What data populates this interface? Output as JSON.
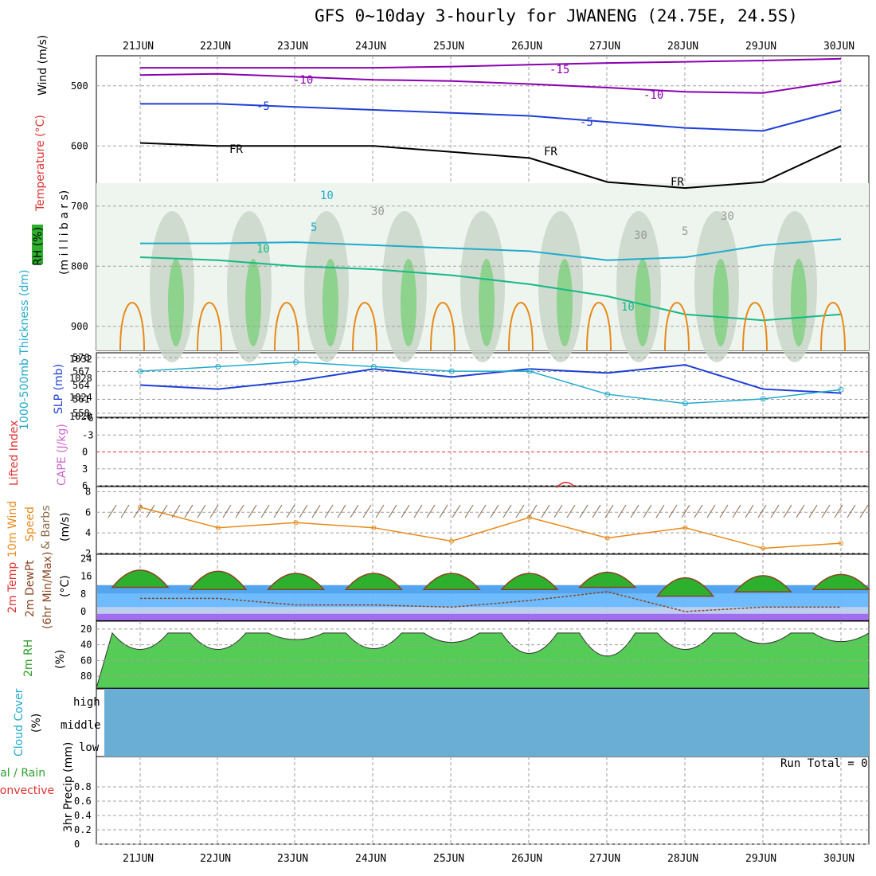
{
  "title": "GFS 0~10day 3-hourly for JWANENG (24.75E, 24.5S)",
  "dates": [
    "21JUN",
    "22JUN",
    "23JUN",
    "24JUN",
    "25JUN",
    "26JUN",
    "27JUN",
    "28JUN",
    "29JUN",
    "30JUN"
  ],
  "colors": {
    "grid": "#a0a0a0",
    "green_rh": "#2e9f2e",
    "purple": "#8b00b0",
    "blue": "#1f3fd6",
    "cyan": "#22aacc",
    "orange": "#e88a1a",
    "red": "#e03030",
    "cloud": "#6aaed6",
    "wind_barb": "#8b6a4a",
    "temp_purple": "#9b66ee"
  },
  "panels": {
    "upper": {
      "ylabel_rh": "RH (%)",
      "ylabel_temp": "Temperature (°C)",
      "ylabel_wind": "Wind (m/s)",
      "ylabel_pressure": "(m i l l i b a r s)",
      "ticks": [
        "500",
        "600",
        "700",
        "800",
        "900"
      ],
      "contours": [
        "-15",
        "-10",
        "-10",
        "-5",
        "-5",
        "FR",
        "FR",
        "FR",
        "5",
        "10",
        "10",
        "10",
        "30",
        "30",
        "30",
        "5"
      ]
    },
    "slp": {
      "ylabel_thick": "1000-500mb Thickness (dm)",
      "ylabel_slp": "SLP (mb)",
      "left_ticks": [
        "570",
        "567",
        "564",
        "561",
        "558"
      ],
      "right_ticks": [
        "1032",
        "1028",
        "1024",
        "1020"
      ]
    },
    "cape": {
      "ylabel_li": "Lifted Index",
      "ylabel_cape": "CAPE (J/kg)",
      "ticks": [
        "-6",
        "-3",
        "0",
        "3",
        "6"
      ]
    },
    "wind10": {
      "ylabel_a": "10m Wind",
      "ylabel_b": "Speed",
      "ylabel_c": "& Barbs",
      "ylabel_unit": "(m/s)",
      "ticks": [
        "8",
        "6",
        "4",
        "2"
      ]
    },
    "temp2m": {
      "ylabel_a": "2m Temp",
      "ylabel_b": "2m DewPt",
      "ylabel_c": "(6hr Min/Max)",
      "ylabel_unit": "(°C)",
      "ticks": [
        "24",
        "16",
        "8",
        "0"
      ]
    },
    "rh2m": {
      "ylabel": "2m RH",
      "ylabel_unit": "(%)",
      "ticks": [
        "80",
        "60",
        "40",
        "20"
      ]
    },
    "cloud": {
      "ylabel": "Cloud Cover",
      "ylabel_unit": "(%)",
      "levels": [
        "high",
        "middle",
        "low"
      ]
    },
    "precip": {
      "ylabel_a": "Total / Rain",
      "ylabel_b": "Convective",
      "ylabel_c": "3hr Precip (mm)",
      "ticks": [
        "0.8",
        "0.6",
        "0.4",
        "0.2",
        "0"
      ],
      "run_total": "Run Total = 0"
    }
  },
  "chart_data": [
    {
      "type": "line",
      "name": "upper-air cross-section",
      "ylabel": "millibars",
      "ylim": [
        450,
        940
      ],
      "x": [
        "21JUN",
        "22JUN",
        "23JUN",
        "24JUN",
        "25JUN",
        "26JUN",
        "27JUN",
        "28JUN",
        "29JUN",
        "30JUN"
      ],
      "series": [
        {
          "name": "-15",
          "values": [
            470,
            470,
            470,
            470,
            468,
            465,
            462,
            460,
            458,
            455
          ]
        },
        {
          "name": "-10",
          "values": [
            482,
            480,
            485,
            490,
            492,
            497,
            503,
            510,
            512,
            492
          ]
        },
        {
          "name": "-5",
          "values": [
            530,
            530,
            535,
            540,
            545,
            550,
            560,
            570,
            575,
            540
          ]
        },
        {
          "name": "FR",
          "values": [
            595,
            600,
            600,
            600,
            610,
            620,
            660,
            670,
            660,
            600
          ]
        },
        {
          "name": "5",
          "values": [
            762,
            762,
            760,
            765,
            770,
            775,
            790,
            785,
            765,
            755
          ]
        },
        {
          "name": "10",
          "values": [
            785,
            790,
            800,
            805,
            815,
            830,
            850,
            880,
            890,
            880
          ]
        }
      ]
    },
    {
      "type": "line",
      "name": "SLP / Thickness",
      "ylabel": "SLP (mb)",
      "ylim": [
        1018,
        1034
      ],
      "x": [
        "21JUN",
        "22JUN",
        "23JUN",
        "24JUN",
        "25JUN",
        "26JUN",
        "27JUN",
        "28JUN",
        "29JUN",
        "30JUN"
      ],
      "series": [
        {
          "name": "SLP (mb)",
          "values": [
            1026,
            1025,
            1027,
            1030,
            1028,
            1030,
            1029,
            1031,
            1025,
            1024
          ]
        },
        {
          "name": "1000-500mb Thickness (dm)",
          "values": [
            567,
            568,
            569,
            568,
            567,
            567,
            562,
            560,
            561,
            563
          ]
        }
      ]
    },
    {
      "type": "line",
      "name": "Lifted Index / CAPE",
      "ylabel": "Lifted Index",
      "ylim": [
        6,
        -6
      ],
      "x": [
        "26JUN"
      ],
      "series": [
        {
          "name": "Lifted Index",
          "values": [
            5.2
          ]
        }
      ]
    },
    {
      "type": "line",
      "name": "10m Wind Speed",
      "ylabel": "(m/s)",
      "ylim": [
        2,
        8.5
      ],
      "x": [
        "21JUN",
        "22JUN",
        "23JUN",
        "24JUN",
        "25JUN",
        "26JUN",
        "27JUN",
        "28JUN",
        "29JUN",
        "30JUN"
      ],
      "series": [
        {
          "name": "10m Wind Speed",
          "values": [
            6.5,
            4.5,
            5.0,
            4.5,
            3.2,
            5.5,
            3.5,
            4.5,
            2.5,
            3.0
          ]
        }
      ]
    },
    {
      "type": "area",
      "name": "2m Temp / DewPt",
      "ylabel": "(°C)",
      "ylim": [
        -4,
        26
      ],
      "x": [
        "21JUN",
        "22JUN",
        "23JUN",
        "24JUN",
        "25JUN",
        "26JUN",
        "27JUN",
        "28JUN",
        "29JUN",
        "30JUN"
      ],
      "series": [
        {
          "name": "2m Temp max",
          "values": [
            23,
            23,
            21,
            21,
            21,
            21,
            21,
            20,
            20,
            20
          ]
        },
        {
          "name": "2m Temp min",
          "values": [
            11,
            10,
            10,
            10,
            10,
            10,
            11,
            7,
            9,
            10
          ]
        },
        {
          "name": "2m DewPt",
          "values": [
            6,
            6,
            3,
            3,
            2,
            5,
            9,
            0,
            2,
            2
          ]
        }
      ]
    },
    {
      "type": "area",
      "name": "2m RH",
      "ylabel": "(%)",
      "ylim": [
        10,
        95
      ],
      "x": [
        "21JUN",
        "22JUN",
        "23JUN",
        "24JUN",
        "25JUN",
        "26JUN",
        "27JUN",
        "28JUN",
        "29JUN",
        "30JUN"
      ],
      "series": [
        {
          "name": "2m RH",
          "values": [
            75,
            75,
            50,
            73,
            57,
            85,
            92,
            75,
            60,
            55
          ]
        }
      ]
    },
    {
      "type": "bar",
      "name": "3hr Precip",
      "ylabel": "3hr Precip (mm)",
      "ylim": [
        0,
        1
      ],
      "x": [
        "21JUN",
        "22JUN",
        "23JUN",
        "24JUN",
        "25JUN",
        "26JUN",
        "27JUN",
        "28JUN",
        "29JUN",
        "30JUN"
      ],
      "series": [
        {
          "name": "Total / Rain",
          "values": [
            0,
            0,
            0,
            0,
            0,
            0,
            0,
            0,
            0,
            0
          ]
        }
      ]
    }
  ]
}
